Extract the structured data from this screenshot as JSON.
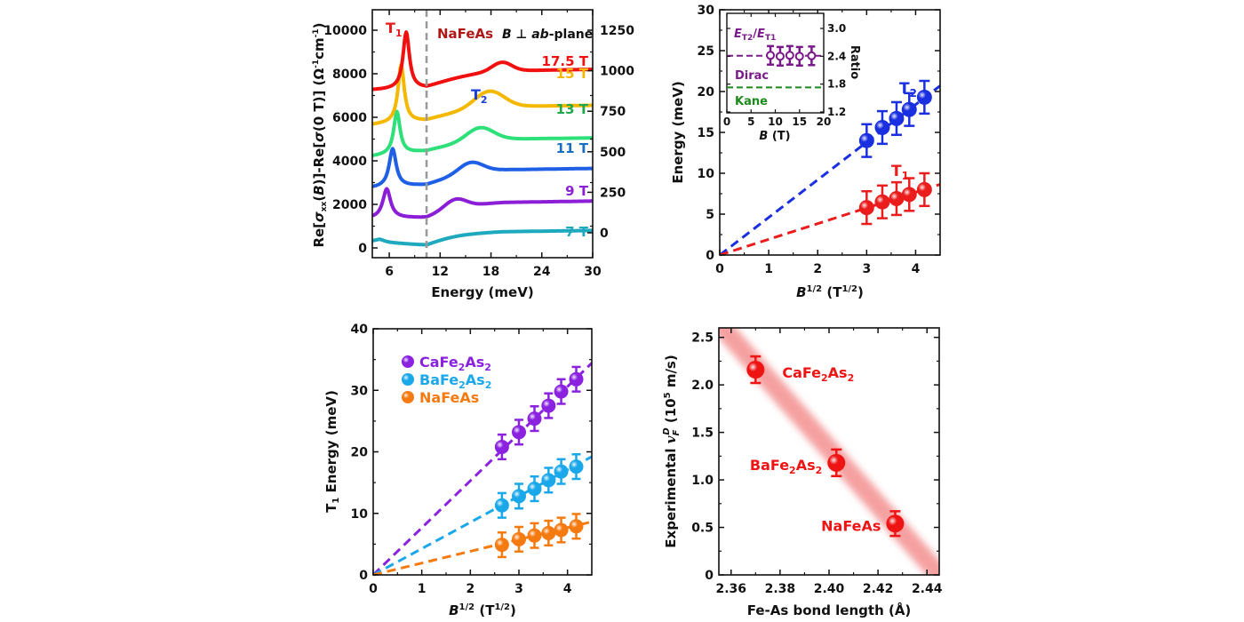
{
  "chart_data": [
    {
      "id": "panelA",
      "type": "line",
      "title": "",
      "annotations": {
        "t1": "T",
        "t1_sub": "1",
        "t2": "T",
        "t2_sub": "2",
        "material": "NaFeAs",
        "orientation_pre": "B ⊥ ",
        "orientation_it": "ab",
        "orientation_post": "-plane"
      },
      "xlabel": "Energy (meV)",
      "ylabel": "Re[σxx(B)]-Re[σ(0 T)] (Ω⁻¹cm⁻¹)",
      "ylabel_parts": {
        "a": "Re[",
        "sigma": "σ",
        "sub": "xx",
        "b": "(",
        "B": "B",
        "c": ")]-Re[",
        "sigma2": "σ",
        "d": "(0 T)] (Ω",
        "sup1": "-1",
        "e": "cm",
        "sup2": "-1",
        "f": ")"
      },
      "xlim": [
        4,
        30
      ],
      "xticks": [
        6,
        12,
        18,
        24,
        30
      ],
      "ylim": [
        -800,
        10800
      ],
      "yticks": [
        0,
        2000,
        4000,
        6000,
        8000,
        10000
      ],
      "y2ticks": [
        0,
        250,
        500,
        750,
        1000,
        1250
      ],
      "vline": 10.4,
      "series": [
        {
          "name": "7 T",
          "color": "#1fa9bf",
          "offset": 300,
          "t1": 4.9,
          "t1_amp": 120,
          "t1_w": 0.6,
          "t2": 13.5,
          "t2_amp": 60,
          "t2_w": 3.0,
          "tail": 800,
          "min": 120
        },
        {
          "name": "9 T",
          "color": "#8a1fd6",
          "offset": 1350,
          "t1": 5.7,
          "t1_amp": 1350,
          "t1_w": 0.55,
          "t2": 13.8,
          "t2_amp": 450,
          "t2_w": 1.8,
          "tail": 2150,
          "min": 1400
        },
        {
          "name": "11 T",
          "color": "#1f5fe6",
          "offset": 2750,
          "t1": 6.4,
          "t1_amp": 1750,
          "t1_w": 0.5,
          "t2": 15.6,
          "t2_amp": 500,
          "t2_w": 2.0,
          "tail": 3650,
          "min": 2900
        },
        {
          "name": "13 T",
          "color": "#2ee07a",
          "offset": 4200,
          "t1": 6.9,
          "t1_amp": 1950,
          "t1_w": 0.45,
          "t2": 16.7,
          "t2_amp": 600,
          "t2_w": 2.2,
          "tail": 5050,
          "min": 4450
        },
        {
          "name": "15 T",
          "color": "#f5b800",
          "offset": 5650,
          "t1": 7.4,
          "t1_amp": 2650,
          "t1_w": 0.45,
          "t2": 17.8,
          "t2_amp": 750,
          "t2_w": 2.4,
          "tail": 6550,
          "min": 5850
        },
        {
          "name": "17.5 T",
          "color": "#f01010",
          "offset": 7250,
          "t1": 8.0,
          "t1_amp": 2600,
          "t1_w": 0.45,
          "t2": 19.3,
          "t2_amp": 400,
          "t2_w": 1.6,
          "tail": 8200,
          "min": 7350
        }
      ],
      "label_colors": {
        "t1": "#e81a1a",
        "t2": "#1a3fd6",
        "material": "#b01818",
        "orientation": "#111111"
      }
    },
    {
      "id": "panelB",
      "type": "scatter",
      "xlabel": "B1/2 (T1/2)",
      "ylabel": "Energy (meV)",
      "xlim": [
        0,
        4.5
      ],
      "xticks": [
        0,
        1,
        2,
        3,
        4
      ],
      "ylim": [
        0,
        30
      ],
      "yticks": [
        0,
        5,
        10,
        15,
        20,
        25,
        30
      ],
      "series": [
        {
          "name": "T2",
          "color": "#1a2fe0",
          "x": [
            3.0,
            3.32,
            3.61,
            3.87,
            4.18
          ],
          "y": [
            14.0,
            15.6,
            16.7,
            17.8,
            19.3
          ],
          "err": 2.0,
          "fit_slope": 4.6
        },
        {
          "name": "T1",
          "color": "#ea1c1c",
          "x": [
            3.0,
            3.32,
            3.61,
            3.87,
            4.18
          ],
          "y": [
            5.8,
            6.5,
            6.9,
            7.4,
            8.0
          ],
          "err": 2.0,
          "fit_slope": 1.92
        }
      ],
      "inset": {
        "xlabel": "B (T)",
        "ylabel": "Ratio",
        "xlim": [
          0,
          20
        ],
        "xticks": [
          0,
          5,
          10,
          15,
          20
        ],
        "ylim": [
          1.2,
          3.3
        ],
        "yticks": [
          "1.2",
          "1.8",
          "2.4",
          "3.0"
        ],
        "title": "ET2/ET1",
        "color": "#7a1a8a",
        "x": [
          9,
          11,
          13,
          15,
          17.5
        ],
        "y": [
          2.42,
          2.4,
          2.42,
          2.4,
          2.41
        ],
        "err": 0.2,
        "dirac_line": 2.41,
        "dirac_label": "Dirac",
        "dirac_color": "#7a1a8a",
        "kane_line": 1.73,
        "kane_label": "Kane",
        "kane_color": "#1a8a1a"
      }
    },
    {
      "id": "panelC",
      "type": "scatter",
      "xlabel": "B1/2 (T1/2)",
      "ylabel": "T1 Energy (meV)",
      "xlim": [
        0,
        4.5
      ],
      "xticks": [
        0,
        1,
        2,
        3,
        4
      ],
      "ylim": [
        0,
        40
      ],
      "yticks": [
        0,
        10,
        20,
        30,
        40
      ],
      "legend_position": "top-left",
      "series": [
        {
          "name": "CaFe2As2",
          "color": "#8a22e0",
          "x": [
            2.65,
            3.0,
            3.32,
            3.61,
            3.87,
            4.18
          ],
          "y": [
            20.8,
            23.2,
            25.4,
            27.5,
            29.8,
            31.8
          ],
          "err": 2.0,
          "fit_slope": 7.65
        },
        {
          "name": "BaFe2As2",
          "color": "#1aa8ea",
          "x": [
            2.65,
            3.0,
            3.32,
            3.61,
            3.87,
            4.18
          ],
          "y": [
            11.3,
            12.8,
            14.0,
            15.4,
            16.8,
            17.6
          ],
          "err": 2.0,
          "fit_slope": 4.27
        },
        {
          "name": "NaFeAs",
          "color": "#f57a0f",
          "x": [
            2.65,
            3.0,
            3.32,
            3.61,
            3.87,
            4.18
          ],
          "y": [
            4.9,
            5.8,
            6.4,
            6.8,
            7.3,
            7.9
          ],
          "err": 2.0,
          "fit_slope": 1.92
        }
      ]
    },
    {
      "id": "panelD",
      "type": "scatter",
      "xlabel": "Fe-As bond length (Å)",
      "ylabel": "Experimental vF^D (10^5 m/s)",
      "xlim": [
        2.355,
        2.445
      ],
      "xticks": [
        "2.36",
        "2.38",
        "2.40",
        "2.42",
        "2.44"
      ],
      "ylim": [
        0,
        2.6
      ],
      "yticks": [
        "0",
        "0.5",
        "1.0",
        "1.5",
        "2.0",
        "2.5"
      ],
      "color": "#ee1414",
      "points": [
        {
          "name": "CaFe2As2",
          "x": 2.37,
          "y": 2.16,
          "err": 0.14
        },
        {
          "name": "BaFe2As2",
          "x": 2.403,
          "y": 1.18,
          "err": 0.14
        },
        {
          "name": "NaFeAs",
          "x": 2.427,
          "y": 0.54,
          "err": 0.13
        }
      ],
      "trend_line": {
        "x": [
          2.355,
          2.445
        ],
        "y": [
          2.65,
          0.0
        ],
        "color": "#f5a0a0"
      }
    }
  ]
}
